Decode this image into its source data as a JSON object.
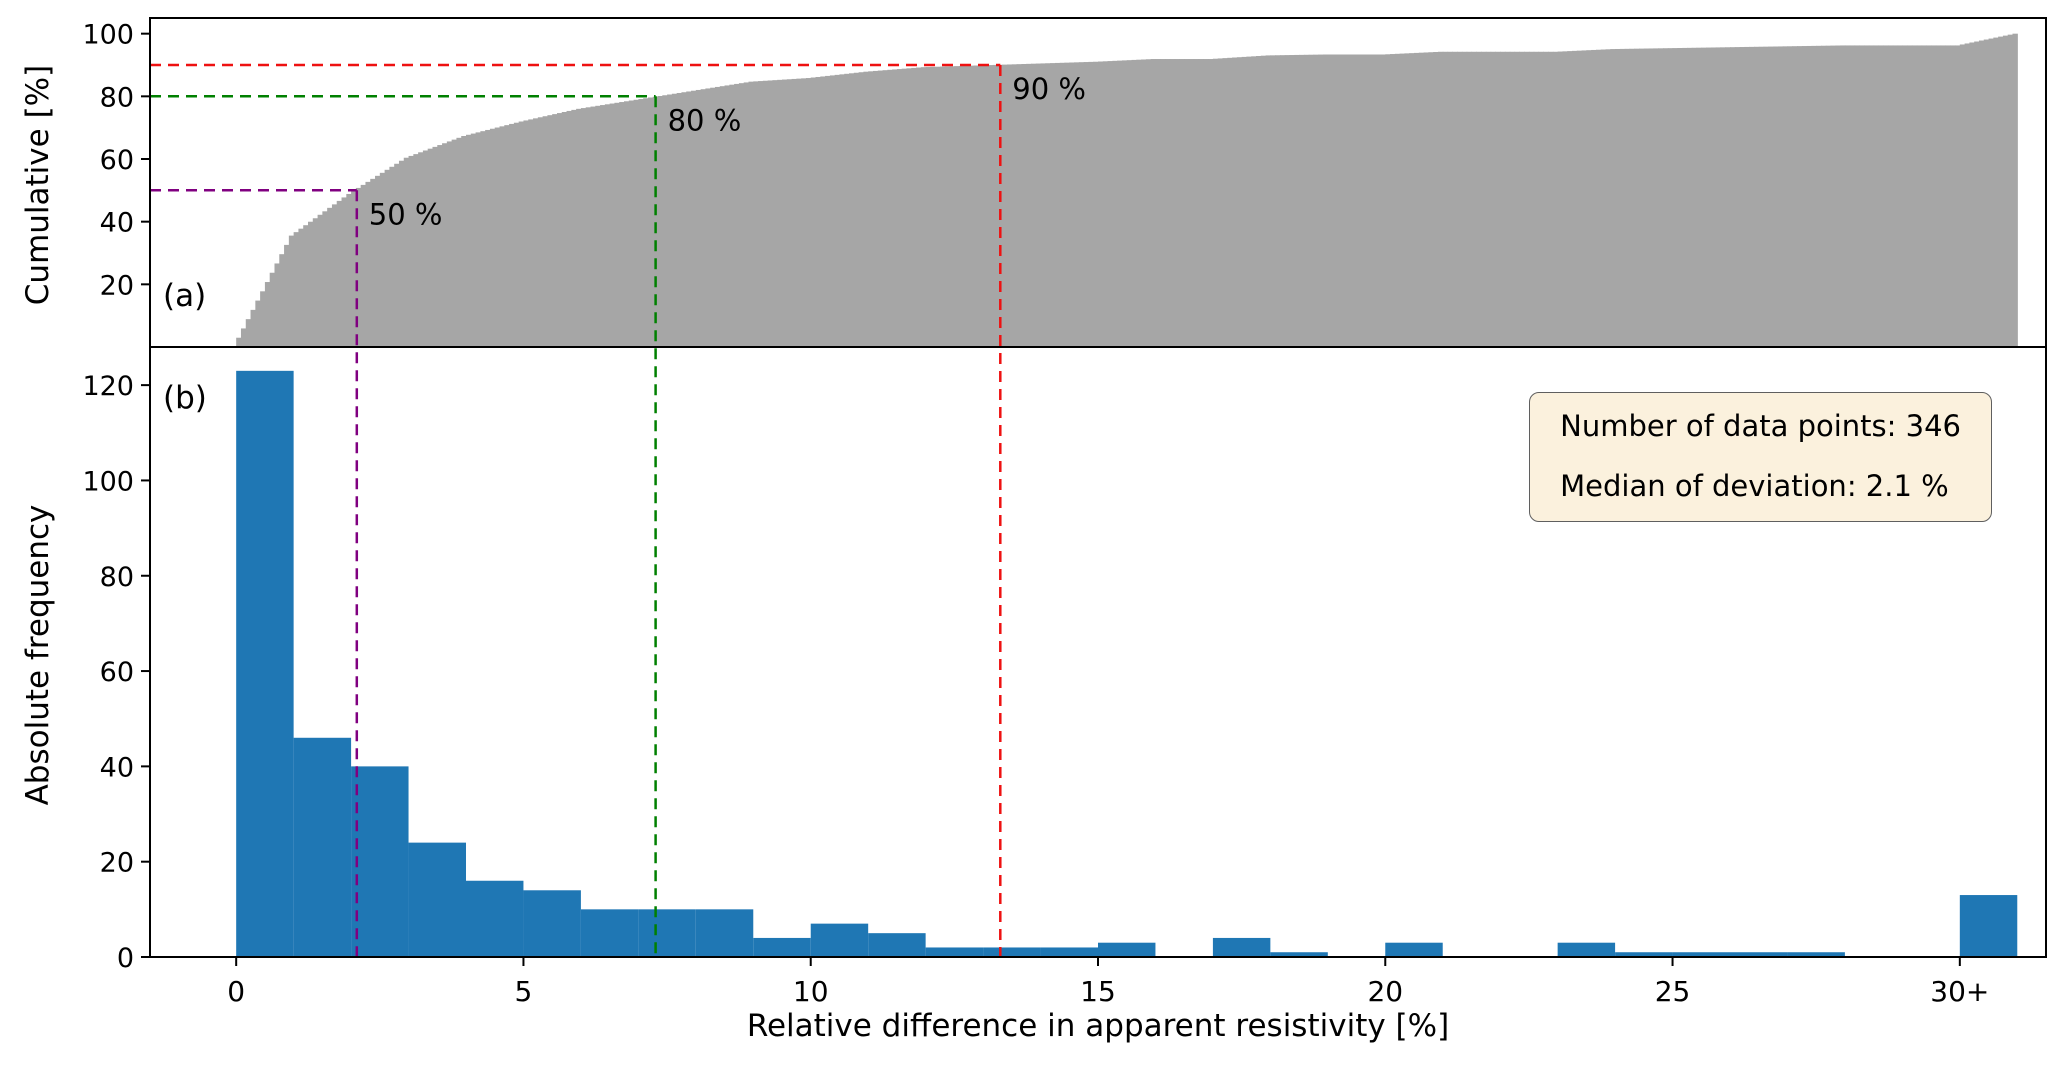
{
  "chart_data": [
    {
      "id": "cumulative_panel_a",
      "type": "area",
      "panel_label": "(a)",
      "ylabel": "Cumulative [%]",
      "ylim": [
        0,
        105
      ],
      "yticks": [
        20,
        40,
        60,
        80,
        100
      ],
      "xlim": [
        -1.5,
        31.5
      ],
      "grid": false,
      "fill_color": "#a6a6a6",
      "description": "Empirical cumulative distribution (in %) of relative differences, derived from the histogram in panel (b)",
      "percentile_markers": [
        {
          "percent": 50,
          "x": 2.1,
          "label": "50 %",
          "color": "#800080"
        },
        {
          "percent": 80,
          "x": 7.3,
          "label": "80 %",
          "color": "#008000"
        },
        {
          "percent": 90,
          "x": 13.3,
          "label": "90 %",
          "color": "#ee1111"
        }
      ]
    },
    {
      "id": "histogram_panel_b",
      "type": "bar",
      "panel_label": "(b)",
      "xlabel": "Relative difference in apparent resistivity [%]",
      "ylabel": "Absolute frequency",
      "ylim": [
        0,
        128
      ],
      "yticks": [
        0,
        20,
        40,
        60,
        80,
        100,
        120
      ],
      "xlim": [
        -1.5,
        31.5
      ],
      "grid": false,
      "xticks": [
        {
          "value": 0,
          "label": "0"
        },
        {
          "value": 5,
          "label": "5"
        },
        {
          "value": 10,
          "label": "10"
        },
        {
          "value": 15,
          "label": "15"
        },
        {
          "value": 20,
          "label": "20"
        },
        {
          "value": 25,
          "label": "25"
        },
        {
          "value": 30,
          "label": "30+"
        }
      ],
      "bin_width": 1,
      "bin_starts": [
        0,
        1,
        2,
        3,
        4,
        5,
        6,
        7,
        8,
        9,
        10,
        11,
        12,
        13,
        14,
        15,
        16,
        17,
        18,
        19,
        20,
        21,
        22,
        23,
        24,
        25,
        26,
        27,
        28,
        29,
        30
      ],
      "counts": [
        123,
        46,
        40,
        24,
        16,
        14,
        10,
        10,
        10,
        4,
        7,
        5,
        2,
        2,
        2,
        3,
        0,
        4,
        1,
        0,
        3,
        0,
        0,
        3,
        1,
        1,
        1,
        1,
        0,
        0,
        13
      ],
      "bar_color": "#1f77b4",
      "total_count": 346,
      "annotation": {
        "lines": [
          "Number of data points: 346",
          "Median of deviation: 2.1 %"
        ],
        "background": "#fbf1dd",
        "border_color": "#5f5f5f"
      }
    }
  ]
}
